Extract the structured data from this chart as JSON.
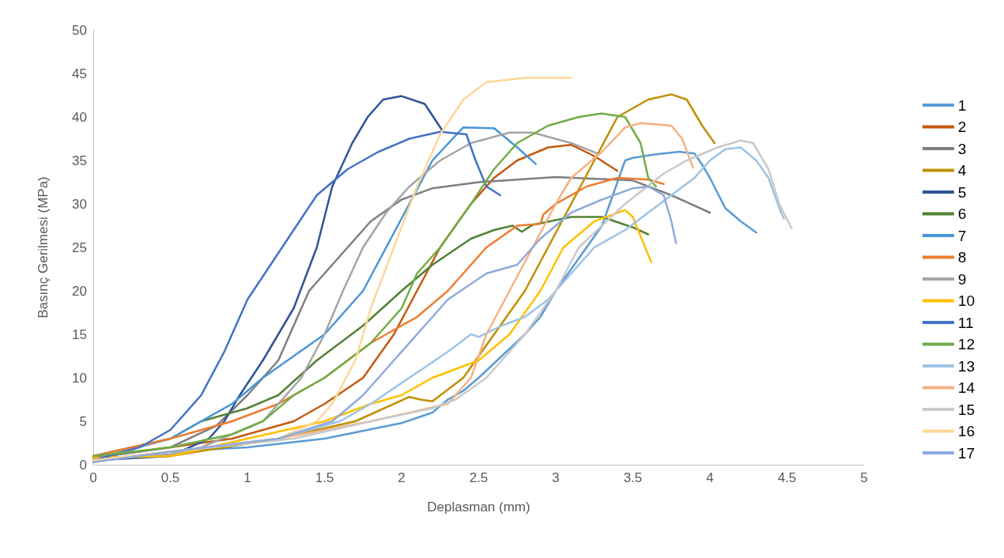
{
  "chart_data": {
    "type": "line",
    "xlabel": "Deplasman (mm)",
    "ylabel": "Basınç Gerilmesi (MPa)",
    "xlim": [
      0,
      5
    ],
    "xticks": [
      0,
      0.5,
      1,
      1.5,
      2,
      2.5,
      3,
      3.5,
      4,
      4.5,
      5
    ],
    "ylim": [
      0,
      50
    ],
    "yticks": [
      0,
      5,
      10,
      15,
      20,
      25,
      30,
      35,
      40,
      45,
      50
    ],
    "grid": false,
    "legend": "right",
    "marker": "none",
    "line_style": "solid",
    "series": [
      {
        "name": "1",
        "color": "#5b9bd5",
        "x": [
          0,
          0.5,
          1,
          1.5,
          2,
          2.2,
          2.3,
          2.4,
          2.5,
          2.65,
          2.8,
          2.9,
          3.0,
          3.1,
          3.2,
          3.3,
          3.35,
          3.4,
          3.45,
          3.5,
          3.65,
          3.8,
          3.9,
          3.95,
          4.0,
          4.1,
          4.2,
          4.3
        ],
        "values": [
          0.5,
          1.5,
          2,
          3,
          4.8,
          6,
          7.5,
          8.5,
          10,
          12.5,
          15,
          17,
          20,
          22.5,
          25,
          27.5,
          30,
          32.5,
          35,
          35.3,
          35.7,
          36,
          35.8,
          34.5,
          33,
          29.5,
          28,
          26.7
        ]
      },
      {
        "name": "2",
        "color": "#c55a11",
        "x": [
          0,
          0.5,
          0.9,
          1.1,
          1.3,
          1.5,
          1.75,
          1.95,
          2.1,
          2.25,
          2.45,
          2.6,
          2.75,
          2.95,
          3.1,
          3.25,
          3.4
        ],
        "values": [
          0.8,
          2,
          3,
          4,
          5,
          7,
          10,
          15,
          20,
          25,
          30,
          33,
          35,
          36.5,
          36.8,
          35.5,
          33.8
        ]
      },
      {
        "name": "3",
        "color": "#7f7f7f",
        "x": [
          0,
          0.5,
          0.8,
          1.0,
          1.2,
          1.4,
          1.6,
          1.8,
          2.0,
          2.2,
          2.5,
          3.0,
          3.5,
          3.75,
          4.0
        ],
        "values": [
          0.8,
          2,
          4.5,
          8,
          12,
          20,
          24,
          28,
          30.5,
          31.8,
          32.5,
          33.1,
          32.7,
          31,
          29
        ]
      },
      {
        "name": "4",
        "color": "#bf9000",
        "x": [
          0,
          0.5,
          1.2,
          1.7,
          2.05,
          2.12,
          2.2,
          2.4,
          2.6,
          2.8,
          2.95,
          3.1,
          3.25,
          3.4,
          3.6,
          3.75,
          3.85,
          3.95,
          4.03
        ],
        "values": [
          0.8,
          1,
          3,
          5,
          7.8,
          7.5,
          7.3,
          10,
          15,
          20,
          25,
          30,
          35,
          40,
          42,
          42.6,
          42,
          39,
          37
        ]
      },
      {
        "name": "5",
        "color": "#2f5597",
        "x": [
          0,
          0.5,
          0.75,
          0.85,
          0.95,
          1.1,
          1.3,
          1.45,
          1.55,
          1.68,
          1.78,
          1.88,
          2.0,
          2.15,
          2.27
        ],
        "values": [
          0.5,
          1,
          3,
          5,
          8,
          12,
          18,
          25,
          32,
          37,
          40,
          42,
          42.4,
          41.5,
          38.3
        ]
      },
      {
        "name": "6",
        "color": "#548235",
        "x": [
          0,
          0.5,
          0.7,
          1.0,
          1.2,
          1.45,
          1.75,
          2.0,
          2.2,
          2.45,
          2.6,
          2.72,
          2.78,
          2.85,
          3.1,
          3.3,
          3.5,
          3.6
        ],
        "values": [
          1,
          3,
          5,
          6.5,
          8,
          12,
          16,
          20,
          23,
          26,
          27,
          27.5,
          26.8,
          27.6,
          28.5,
          28.5,
          27.3,
          26.5
        ]
      },
      {
        "name": "7",
        "color": "#4a95d8",
        "x": [
          0,
          0.5,
          0.9,
          1.1,
          1.5,
          1.75,
          1.9,
          2.05,
          2.2,
          2.4,
          2.6,
          2.75,
          2.87
        ],
        "values": [
          0.6,
          3,
          7,
          10,
          15,
          20,
          25,
          30,
          35,
          38.8,
          38.7,
          36.5,
          34.6
        ]
      },
      {
        "name": "8",
        "color": "#ed7d31",
        "x": [
          0,
          0.5,
          0.9,
          1.2,
          1.5,
          1.8,
          2.1,
          2.3,
          2.55,
          2.75,
          2.9,
          2.92,
          3.0,
          3.2,
          3.4,
          3.6,
          3.7
        ],
        "values": [
          1,
          3,
          5,
          7,
          10,
          14,
          17,
          20,
          25,
          27.5,
          27.7,
          28.8,
          30,
          32,
          33,
          32.8,
          32.3
        ]
      },
      {
        "name": "9",
        "color": "#a5a5a5",
        "x": [
          0,
          0.5,
          0.7,
          1.1,
          1.35,
          1.5,
          1.62,
          1.75,
          1.9,
          2.05,
          2.25,
          2.45,
          2.7,
          2.85,
          3.1,
          3.27
        ],
        "values": [
          0.6,
          1.2,
          2,
          5,
          10,
          15,
          20,
          25,
          29,
          32,
          35,
          37,
          38.2,
          38.2,
          37,
          35.8
        ]
      },
      {
        "name": "10",
        "color": "#ffc000",
        "x": [
          0,
          0.5,
          1.0,
          1.5,
          1.8,
          2.0,
          2.2,
          2.5,
          2.7,
          2.9,
          3.05,
          3.25,
          3.45,
          3.5,
          3.58,
          3.62
        ],
        "values": [
          0.8,
          1,
          3,
          5,
          7,
          8,
          10,
          12,
          15,
          20,
          25,
          28,
          29.3,
          28.5,
          25,
          23.3
        ]
      },
      {
        "name": "11",
        "color": "#4472c4",
        "x": [
          0,
          0.3,
          0.5,
          0.7,
          0.85,
          1.0,
          1.15,
          1.3,
          1.45,
          1.65,
          1.85,
          2.05,
          2.25,
          2.42,
          2.48,
          2.55,
          2.64
        ],
        "values": [
          0.5,
          2,
          4,
          8,
          13,
          19,
          23,
          27,
          31,
          34,
          36,
          37.5,
          38.3,
          38,
          35,
          32,
          31
        ]
      },
      {
        "name": "12",
        "color": "#70ad47",
        "x": [
          0,
          0.5,
          0.9,
          1.1,
          1.3,
          1.5,
          1.8,
          2.0,
          2.1,
          2.25,
          2.45,
          2.6,
          2.75,
          2.95,
          3.15,
          3.3,
          3.45,
          3.55,
          3.6,
          3.65
        ],
        "values": [
          1,
          2,
          3.5,
          5,
          8,
          10,
          14,
          18,
          22,
          25,
          30,
          34,
          37,
          39,
          40,
          40.4,
          40,
          37,
          33,
          32
        ]
      },
      {
        "name": "13",
        "color": "#9dc3e6",
        "x": [
          0,
          0.5,
          1.2,
          1.6,
          1.8,
          2.05,
          2.3,
          2.45,
          2.5,
          2.65,
          2.8,
          2.95,
          3.1,
          3.25,
          3.45,
          3.6,
          3.75,
          3.9,
          4.0,
          4.1,
          4.2,
          4.3,
          4.38,
          4.45,
          4.48
        ],
        "values": [
          0.5,
          1.5,
          3,
          5,
          7,
          10,
          13,
          15,
          14.7,
          16,
          17,
          19,
          22,
          25,
          27,
          29,
          31,
          33,
          35,
          36.3,
          36.5,
          35,
          33,
          29.5,
          28.3
        ]
      },
      {
        "name": "14",
        "color": "#f4b183",
        "x": [
          0,
          0.5,
          1.2,
          1.8,
          2.3,
          2.45,
          2.55,
          2.7,
          2.85,
          3.0,
          3.1,
          3.3,
          3.45,
          3.55,
          3.75,
          3.82,
          3.89
        ],
        "values": [
          0.5,
          1.5,
          3,
          5,
          7,
          10,
          15,
          20,
          25,
          30,
          33,
          36,
          38.8,
          39.3,
          39,
          37.5,
          34.2
        ]
      },
      {
        "name": "15",
        "color": "#c9c9c9",
        "x": [
          0,
          0.5,
          1.3,
          1.8,
          2.2,
          2.35,
          2.55,
          2.8,
          3.0,
          3.15,
          3.45,
          3.7,
          3.85,
          4.05,
          4.2,
          4.28,
          4.38,
          4.45,
          4.53
        ],
        "values": [
          0.5,
          1.5,
          3,
          5,
          6.5,
          7.5,
          10,
          15,
          20,
          25,
          30,
          33.5,
          35,
          36.5,
          37.3,
          37,
          34,
          30,
          27.2
        ]
      },
      {
        "name": "16",
        "color": "#ffd699",
        "x": [
          0,
          0.5,
          1.2,
          1.45,
          1.55,
          1.7,
          1.8,
          1.95,
          2.1,
          2.25,
          2.4,
          2.55,
          2.8,
          3.1
        ],
        "values": [
          0.5,
          1.5,
          3,
          5,
          7,
          12,
          18,
          25,
          32,
          38,
          42,
          44,
          44.5,
          44.5
        ]
      },
      {
        "name": "17",
        "color": "#8faadc",
        "x": [
          0,
          0.5,
          1.2,
          1.55,
          1.75,
          1.95,
          2.15,
          2.3,
          2.55,
          2.75,
          2.9,
          3.1,
          3.3,
          3.5,
          3.6,
          3.7,
          3.75,
          3.78
        ],
        "values": [
          0.3,
          1.5,
          3,
          5,
          8,
          12,
          16,
          19,
          22,
          23,
          26,
          29,
          30.5,
          31.8,
          32,
          31,
          28,
          25.5
        ]
      }
    ]
  }
}
